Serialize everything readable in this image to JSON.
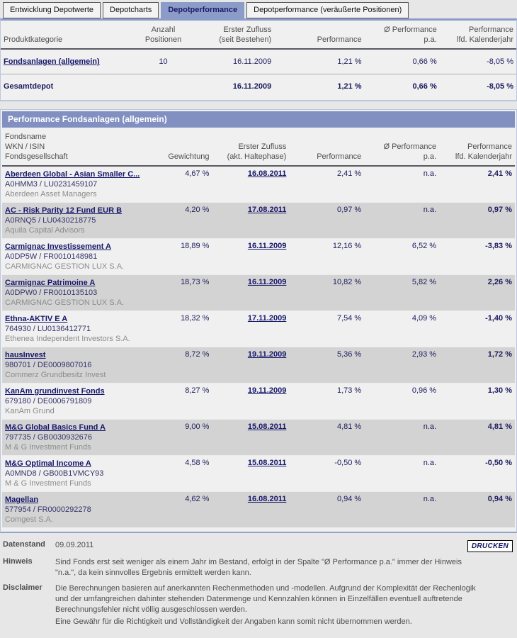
{
  "colors": {
    "accent": "#8b9cc8",
    "title_bar": "#8190c1",
    "link": "#16166b",
    "row_shade": "#d3d3d3",
    "panel_bg": "#f0f0f0"
  },
  "tabs": [
    {
      "label": "Entwicklung Depotwerte",
      "active": false
    },
    {
      "label": "Depotcharts",
      "active": false
    },
    {
      "label": "Depotperformance",
      "active": true
    },
    {
      "label": "Depotperformance (veräußerte Positionen)",
      "active": false
    }
  ],
  "summary": {
    "header": {
      "c1": "Produktkategorie",
      "c2a": "Anzahl",
      "c2b": "Positionen",
      "c3a": "Erster Zufluss",
      "c3b": "(seit Bestehen)",
      "c4": "Performance",
      "c5a": "Ø Performance",
      "c5b": "p.a.",
      "c6a": "Performance",
      "c6b": "lfd. Kalenderjahr"
    },
    "rows": [
      {
        "category": "Fondsanlagen (allgemein)",
        "count": "10",
        "inflow": "16.11.2009",
        "perf": "1,21 %",
        "perf_pa": "0,66 %",
        "perf_ytd": "-8,05 %"
      },
      {
        "category": "Gesamtdepot",
        "count": "",
        "inflow": "16.11.2009",
        "perf": "1,21 %",
        "perf_pa": "0,66 %",
        "perf_ytd": "-8,05 %"
      }
    ]
  },
  "funds": {
    "section_title": "Performance Fondsanlagen (allgemein)",
    "header": {
      "c1a": "Fondsname",
      "c1b": "WKN / ISIN",
      "c1c": "Fondsgesellschaft",
      "c2": "Gewichtung",
      "c3a": "Erster Zufluss",
      "c3b": "(akt. Haltephase)",
      "c4": "Performance",
      "c5a": "Ø Performance",
      "c5b": "p.a.",
      "c6a": "Performance",
      "c6b": "lfd. Kalenderjahr"
    },
    "rows": [
      {
        "name": "Aberdeen Global - Asian Smaller C...",
        "wkn_isin": "A0HMM3 /  LU0231459107",
        "company": "Aberdeen Asset Managers",
        "weight": "4,67 %",
        "inflow": "16.08.2011",
        "perf": "2,41 %",
        "perf_pa": "n.a.",
        "perf_ytd": "2,41 %"
      },
      {
        "name": "AC - Risk Parity 12 Fund EUR B",
        "wkn_isin": "A0RNQ5 /  LU0430218775",
        "company": "Aquila Capital Advisors",
        "weight": "4,20 %",
        "inflow": "17.08.2011",
        "perf": "0,97 %",
        "perf_pa": "n.a.",
        "perf_ytd": "0,97 %"
      },
      {
        "name": "Carmignac Investissement A",
        "wkn_isin": "A0DP5W /  FR0010148981",
        "company": "CARMIGNAC GESTION LUX S.A.",
        "weight": "18,89 %",
        "inflow": "16.11.2009",
        "perf": "12,16 %",
        "perf_pa": "6,52 %",
        "perf_ytd": "-3,83 %"
      },
      {
        "name": "Carmignac Patrimoine A",
        "wkn_isin": "A0DPW0 /  FR0010135103",
        "company": "CARMIGNAC GESTION LUX S.A.",
        "weight": "18,73 %",
        "inflow": "16.11.2009",
        "perf": "10,82 %",
        "perf_pa": "5,82 %",
        "perf_ytd": "2,26 %"
      },
      {
        "name": "Ethna-AKTIV E A",
        "wkn_isin": "764930 /  LU0136412771",
        "company": "Ethenea Independent Investors S.A.",
        "weight": "18,32 %",
        "inflow": "17.11.2009",
        "perf": "7,54 %",
        "perf_pa": "4,09 %",
        "perf_ytd": "-1,40 %"
      },
      {
        "name": "hausInvest",
        "wkn_isin": "980701 /  DE0009807016",
        "company": "Commerz Grundbesitz Invest",
        "weight": "8,72 %",
        "inflow": "19.11.2009",
        "perf": "5,36 %",
        "perf_pa": "2,93 %",
        "perf_ytd": "1,72 %"
      },
      {
        "name": "KanAm grundinvest Fonds",
        "wkn_isin": "679180 /  DE0006791809",
        "company": "KanAm Grund",
        "weight": "8,27 %",
        "inflow": "19.11.2009",
        "perf": "1,73 %",
        "perf_pa": "0,96 %",
        "perf_ytd": "1,30 %"
      },
      {
        "name": "M&G Global Basics Fund A",
        "wkn_isin": "797735 /  GB0030932676",
        "company": "M & G Investment Funds",
        "weight": "9,00 %",
        "inflow": "15.08.2011",
        "perf": "4,81 %",
        "perf_pa": "n.a.",
        "perf_ytd": "4,81 %"
      },
      {
        "name": "M&G Optimal Income A",
        "wkn_isin": "A0MND8 /  GB00B1VMCY93",
        "company": "M & G Investment Funds",
        "weight": "4,58 %",
        "inflow": "15.08.2011",
        "perf": "-0,50 %",
        "perf_pa": "n.a.",
        "perf_ytd": "-0,50 %"
      },
      {
        "name": "Magellan",
        "wkn_isin": "577954 /  FR0000292278",
        "company": "Comgest S.A.",
        "weight": "4,62 %",
        "inflow": "16.08.2011",
        "perf": "0,94 %",
        "perf_pa": "n.a.",
        "perf_ytd": "0,94 %"
      }
    ]
  },
  "footer": {
    "datenstand_label": "Datenstand",
    "datenstand_value": "09.09.2011",
    "drucken_label": "DRUCKEN",
    "hinweis_label": "Hinweis",
    "hinweis_text": "Sind Fonds erst seit weniger als einem Jahr im Bestand, erfolgt in der Spalte \"Ø Performance p.a.\" immer der Hinweis \"n.a.\", da kein sinnvolles Ergebnis ermittelt werden kann.",
    "disclaimer_label": "Disclaimer",
    "disclaimer_text1": "Die Berechnungen basieren auf anerkannten Rechenmethoden und -modellen. Aufgrund der Komplexität der Rechenlogik und der umfangreichen dahinter stehenden Datenmenge und Kennzahlen können in Einzelfällen eventuell auftretende Berechnungsfehler nicht völlig ausgeschlossen werden.",
    "disclaimer_text2": "Eine Gewähr für die Richtigkeit und Vollständigkeit der Angaben kann somit nicht übernommen werden."
  }
}
